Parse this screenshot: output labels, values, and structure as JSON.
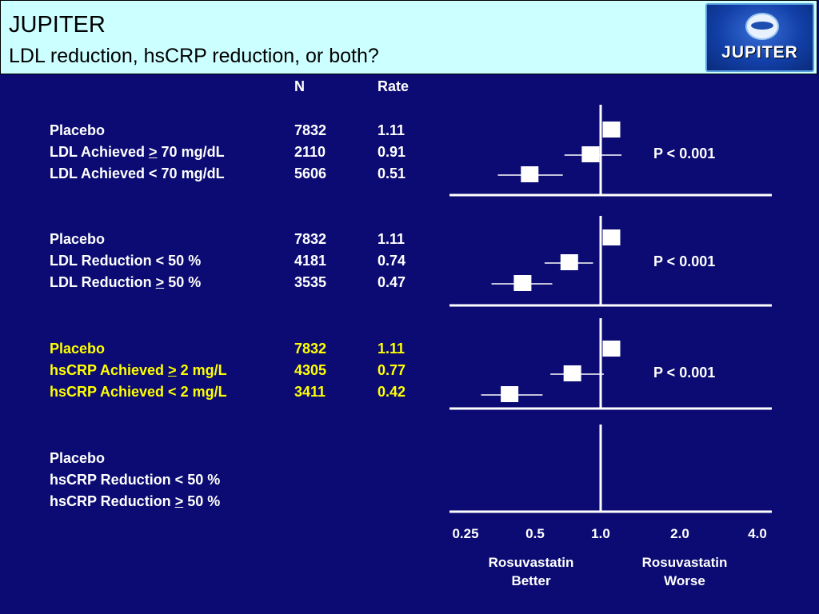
{
  "header": {
    "title": "JUPITER",
    "subtitle": "LDL reduction, hsCRP reduction, or both?",
    "logo_text": "JUPITER"
  },
  "table": {
    "col_n": "N",
    "col_rate": "Rate",
    "groups": [
      {
        "rows": [
          {
            "label_pre": "Placebo",
            "label_u": "",
            "label_post": "",
            "n": "7832",
            "rate": "1.11"
          },
          {
            "label_pre": "LDL Achieved ",
            "label_u": ">",
            "label_post": " 70 mg/dL",
            "n": "2110",
            "rate": "0.91"
          },
          {
            "label_pre": "LDL Achieved < 70 mg/dL",
            "label_u": "",
            "label_post": "",
            "n": "5606",
            "rate": "0.51"
          }
        ],
        "p_value": "P < 0.001"
      },
      {
        "rows": [
          {
            "label_pre": "Placebo",
            "label_u": "",
            "label_post": "",
            "n": "7832",
            "rate": "1.11"
          },
          {
            "label_pre": "LDL Reduction < 50 %",
            "label_u": "",
            "label_post": "",
            "n": "4181",
            "rate": "0.74"
          },
          {
            "label_pre": "LDL Reduction ",
            "label_u": ">",
            "label_post": " 50 %",
            "n": "3535",
            "rate": "0.47"
          }
        ],
        "p_value": "P < 0.001"
      },
      {
        "rows": [
          {
            "label_pre": "Placebo",
            "label_u": "",
            "label_post": "",
            "n": "7832",
            "rate": "1.11"
          },
          {
            "label_pre": "hsCRP Achieved ",
            "label_u": ">",
            "label_post": " 2 mg/L",
            "n": "4305",
            "rate": "0.77"
          },
          {
            "label_pre": "hsCRP Achieved < 2 mg/L",
            "label_u": "",
            "label_post": "",
            "n": "3411",
            "rate": "0.42"
          }
        ],
        "p_value": "P < 0.001"
      },
      {
        "rows": [
          {
            "label_pre": "Placebo",
            "label_u": "",
            "label_post": "",
            "n": "",
            "rate": ""
          },
          {
            "label_pre": "hsCRP Reduction < 50 %",
            "label_u": "",
            "label_post": "",
            "n": "",
            "rate": ""
          },
          {
            "label_pre": "hsCRP Reduction ",
            "label_u": ">",
            "label_post": " 50 %",
            "n": "",
            "rate": ""
          }
        ],
        "p_value": ""
      }
    ]
  },
  "axis": {
    "ticks": [
      "0.25",
      "0.5",
      "1.0",
      "2.0",
      "4.0"
    ],
    "left_caption_1": "Rosuvastatin",
    "left_caption_2": "Better",
    "right_caption_1": "Rosuvastatin",
    "right_caption_2": "Worse"
  },
  "colors": {
    "background": "#0b0b73",
    "header_background": "#ccffff",
    "highlight_text": "#ffff00",
    "marks": "#ffffff"
  },
  "chart_data": {
    "type": "scatter",
    "scale": "log",
    "reference_line": 1.0,
    "xlim": [
      0.25,
      4.0
    ],
    "x_ticks": [
      0.25,
      0.5,
      1.0,
      2.0,
      4.0
    ],
    "panels": [
      {
        "points": [
          {
            "hr": 1.0,
            "ci": null
          },
          {
            "hr": 0.82,
            "ci": [
              0.64,
              1.1
            ]
          },
          {
            "hr": 0.46,
            "ci": [
              0.34,
              0.63
            ]
          }
        ]
      },
      {
        "points": [
          {
            "hr": 1.0,
            "ci": null
          },
          {
            "hr": 0.67,
            "ci": [
              0.53,
              0.84
            ]
          },
          {
            "hr": 0.43,
            "ci": [
              0.32,
              0.57
            ]
          }
        ]
      },
      {
        "points": [
          {
            "hr": 1.0,
            "ci": null
          },
          {
            "hr": 0.69,
            "ci": [
              0.56,
              0.93
            ]
          },
          {
            "hr": 0.38,
            "ci": [
              0.29,
              0.52
            ]
          }
        ]
      },
      {
        "points": []
      }
    ]
  }
}
